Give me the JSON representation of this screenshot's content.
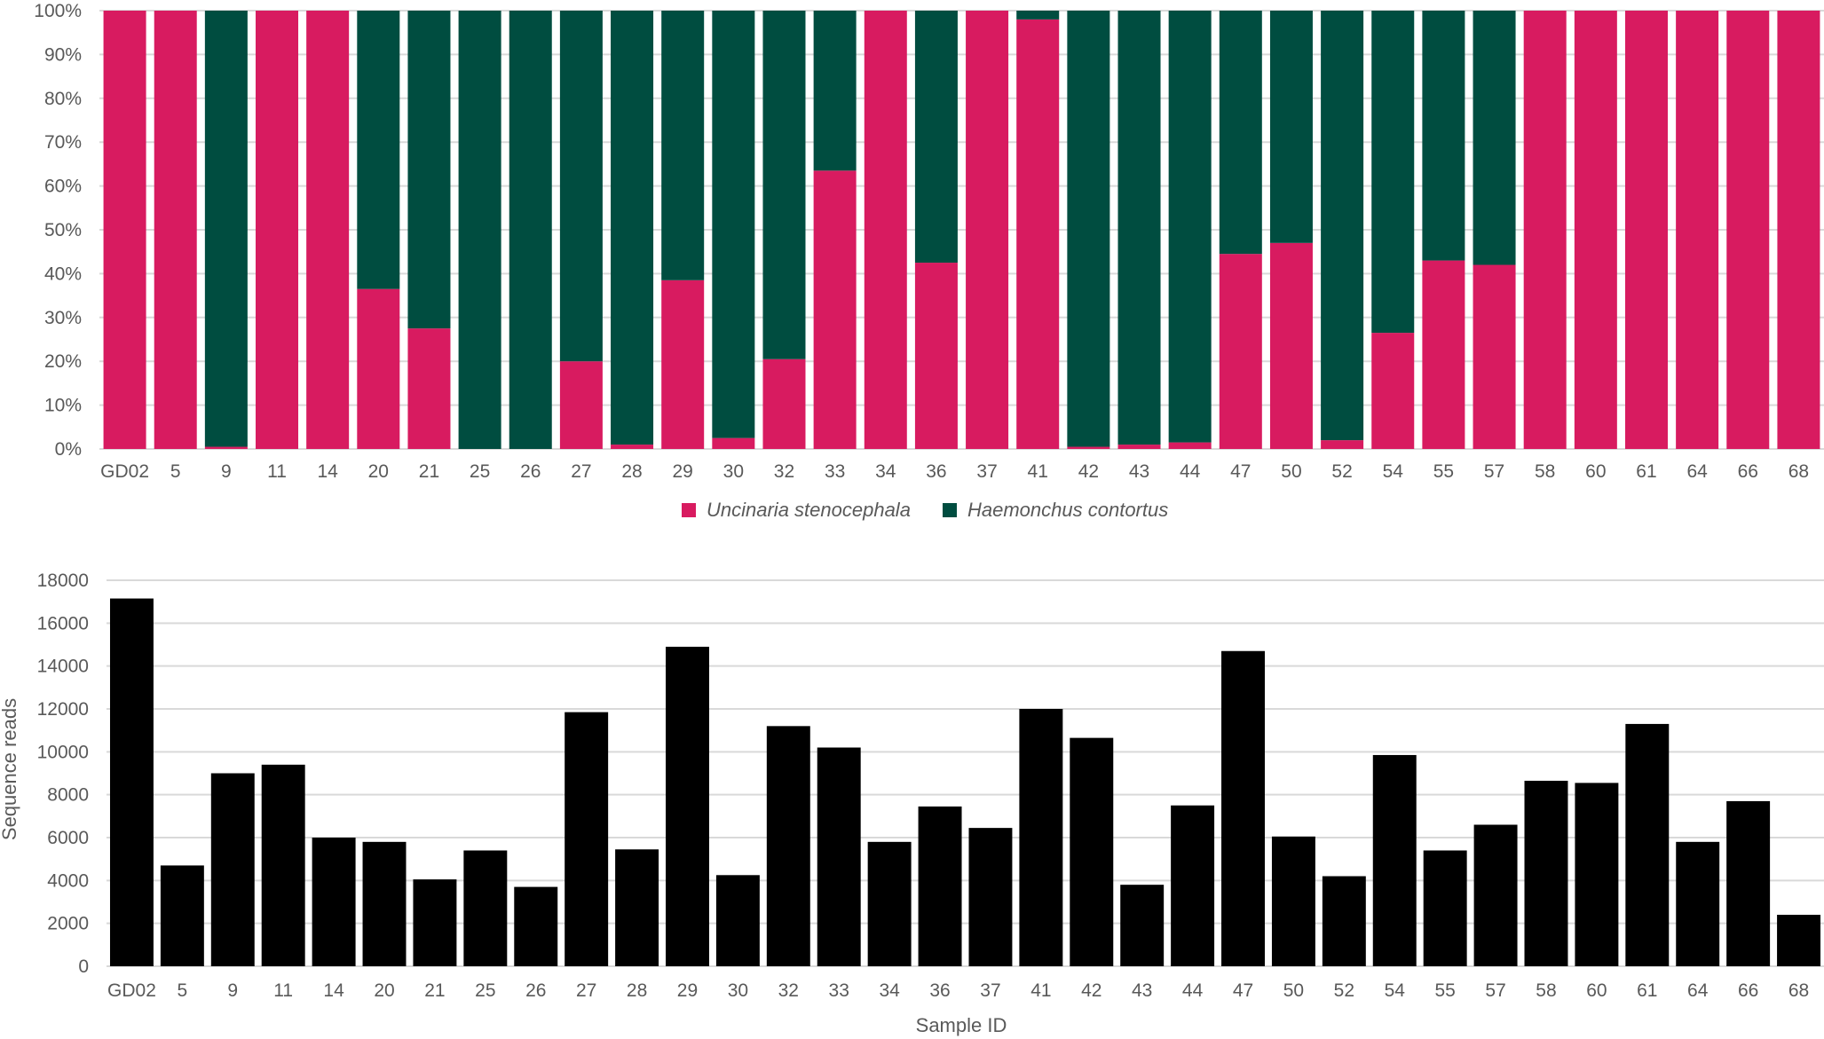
{
  "chart_data": [
    {
      "type": "bar",
      "stacked": true,
      "percent": true,
      "categories": [
        "GD02",
        "5",
        "9",
        "11",
        "14",
        "20",
        "21",
        "25",
        "26",
        "27",
        "28",
        "29",
        "30",
        "32",
        "33",
        "34",
        "36",
        "37",
        "41",
        "42",
        "43",
        "44",
        "47",
        "50",
        "52",
        "54",
        "55",
        "57",
        "58",
        "60",
        "61",
        "64",
        "66",
        "68"
      ],
      "series": [
        {
          "name": "Uncinaria stenocephala",
          "color": "#d81b60",
          "values": [
            100,
            100,
            0.5,
            100,
            100,
            36.5,
            27.5,
            0,
            0,
            20,
            1,
            38.5,
            2.5,
            20.5,
            63.5,
            100,
            42.5,
            100,
            98,
            0.5,
            1,
            1.5,
            44.5,
            47,
            2,
            26.5,
            43,
            42,
            100,
            100,
            100,
            100,
            100,
            100
          ]
        },
        {
          "name": "Haemonchus contortus",
          "color": "#004d40",
          "values": [
            0,
            0,
            99.5,
            0,
            0,
            63.5,
            72.5,
            100,
            100,
            80,
            99,
            61.5,
            97.5,
            79.5,
            36.5,
            0,
            57.5,
            0,
            2,
            99.5,
            99,
            98.5,
            55.5,
            53,
            98,
            73.5,
            57,
            58,
            0,
            0,
            0,
            0,
            0,
            0
          ]
        }
      ],
      "yticks": [
        "0%",
        "10%",
        "20%",
        "30%",
        "40%",
        "50%",
        "60%",
        "70%",
        "80%",
        "90%",
        "100%"
      ],
      "ylim": [
        0,
        100
      ],
      "legend": "bottom-center"
    },
    {
      "type": "bar",
      "categories": [
        "GD02",
        "5",
        "9",
        "11",
        "14",
        "20",
        "21",
        "25",
        "26",
        "27",
        "28",
        "29",
        "30",
        "32",
        "33",
        "34",
        "36",
        "37",
        "41",
        "42",
        "43",
        "44",
        "47",
        "50",
        "52",
        "54",
        "55",
        "57",
        "58",
        "60",
        "61",
        "64",
        "66",
        "68"
      ],
      "values": [
        17150,
        4700,
        9000,
        9400,
        6000,
        5800,
        4050,
        5400,
        3700,
        11850,
        5450,
        14900,
        4250,
        11200,
        10200,
        5800,
        7450,
        6450,
        12000,
        10650,
        3800,
        7500,
        14700,
        6050,
        4200,
        9850,
        5400,
        6600,
        8650,
        8550,
        11300,
        5800,
        7700,
        2400
      ],
      "color": "#000000",
      "yticks": [
        "0",
        "2000",
        "4000",
        "6000",
        "8000",
        "10000",
        "12000",
        "14000",
        "16000",
        "18000"
      ],
      "ylim": [
        0,
        18000
      ],
      "xlabel": "Sample ID",
      "ylabel": "Sequence reads"
    }
  ]
}
